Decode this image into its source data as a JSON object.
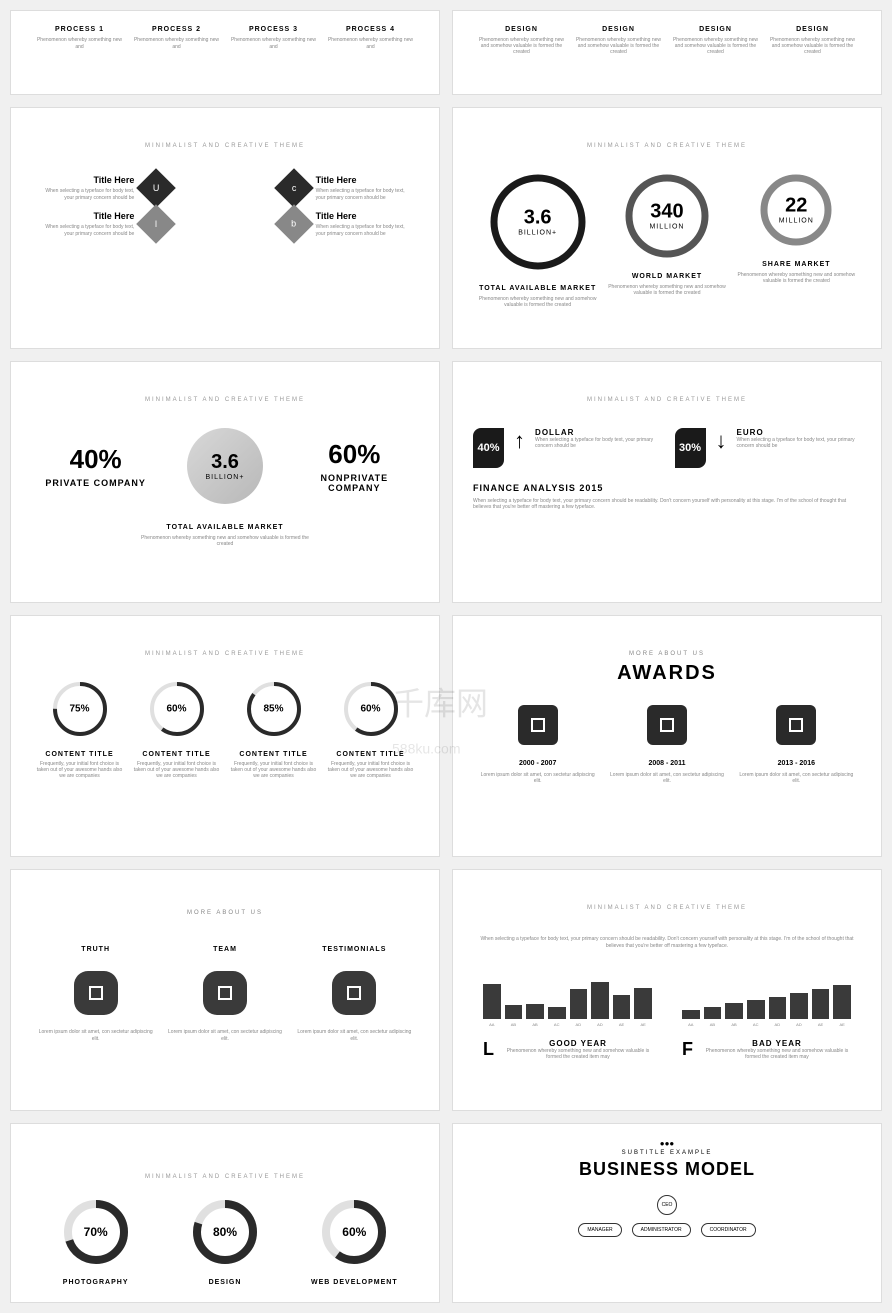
{
  "watermark": "千库网",
  "watermark_sub": "588ku.com",
  "tagline": "MINIMALIST AND CREATIVE THEME",
  "s1": {
    "items": [
      {
        "t": "PROCESS 1",
        "d": "Phenomenon whereby something new and"
      },
      {
        "t": "PROCESS 2",
        "d": "Phenomenon whereby something new and"
      },
      {
        "t": "PROCESS 3",
        "d": "Phenomenon whereby something new and"
      },
      {
        "t": "PROCESS 4",
        "d": "Phenomenon whereby something new and"
      }
    ]
  },
  "s2": {
    "items": [
      {
        "t": "DESIGN",
        "d": "Phenomenon whereby something new and somehow valuable is formed the created"
      },
      {
        "t": "DESIGN",
        "d": "Phenomenon whereby something new and somehow valuable is formed the created"
      },
      {
        "t": "DESIGN",
        "d": "Phenomenon whereby something new and somehow valuable is formed the created"
      },
      {
        "t": "DESIGN",
        "d": "Phenomenon whereby something new and somehow valuable is formed the created"
      }
    ]
  },
  "s3": {
    "t": "Title Here",
    "d": "When selecting a typeface for body text, your primary concern should be",
    "letters": [
      "U",
      "c",
      "l",
      "b"
    ]
  },
  "s4": {
    "circles": [
      {
        "n": "3.6",
        "u": "BILLION+",
        "t": "TOTAL AVAILABLE MARKET",
        "d": "Phenomenon whereby something new and somehow valuable is formed the created",
        "stroke": "#1a1a1a",
        "r": 48
      },
      {
        "n": "340",
        "u": "MILLION",
        "t": "WORLD MARKET",
        "d": "Phenomenon whereby something new and somehow valuable is formed the created",
        "stroke": "#555",
        "r": 42
      },
      {
        "n": "22",
        "u": "MILLION",
        "t": "SHARE MARKET",
        "d": "Phenomenon whereby something new and somehow valuable is formed the created",
        "stroke": "#888",
        "r": 36
      }
    ]
  },
  "s5": {
    "left": {
      "p": "40%",
      "l": "PRIVATE COMPANY"
    },
    "mid": {
      "n": "3.6",
      "u": "BILLION+"
    },
    "right": {
      "p": "60%",
      "l": "NONPRIVATE COMPANY"
    },
    "t": "TOTAL AVAILABLE MARKET",
    "d": "Phenomenon whereby something new and somehow valuable is formed the created"
  },
  "s6": {
    "items": [
      {
        "p": "40%",
        "arrow": "↑",
        "t": "DOLLAR",
        "d": "When selecting a typeface for body text, your primary concern should be"
      },
      {
        "p": "30%",
        "arrow": "↓",
        "t": "EURO",
        "d": "When selecting a typeface for body text, your primary concern should be"
      }
    ],
    "h": "FINANCE ANALYSIS 2015",
    "ht": "When selecting a typeface for body text, your primary concern should be readability. Don't concern yourself with personality at this stage. I'm of the school of thought that believes that you're better off mastering a few typeface."
  },
  "s7": {
    "rings": [
      {
        "p": 75,
        "t": "CONTENT TITLE",
        "d": "Frequently, your initial font choice is taken out of your awesome hands also we are companies"
      },
      {
        "p": 60,
        "t": "CONTENT TITLE",
        "d": "Frequently, your initial font choice is taken out of your awesome hands also we are companies"
      },
      {
        "p": 85,
        "t": "CONTENT TITLE",
        "d": "Frequently, your initial font choice is taken out of your awesome hands also we are companies"
      },
      {
        "p": 60,
        "t": "CONTENT TITLE",
        "d": "Frequently, your initial font choice is taken out of your awesome hands also we are companies"
      }
    ]
  },
  "s8": {
    "sub": "MORE ABOUT US",
    "h": "AWARDS",
    "items": [
      {
        "y": "2000 - 2007",
        "d": "Lorem ipsum dolor sit amet, con sectetur adipiscing elit."
      },
      {
        "y": "2008 - 2011",
        "d": "Lorem ipsum dolor sit amet, con sectetur adipiscing elit."
      },
      {
        "y": "2013 - 2016",
        "d": "Lorem ipsum dolor sit amet, con sectetur adipiscing elit."
      }
    ]
  },
  "s9": {
    "h": "MORE ABOUT US",
    "items": [
      {
        "t": "TRUTH",
        "d": "Lorem ipsum dolor sit amet, con sectetur adipiscing elit."
      },
      {
        "t": "TEAM",
        "d": "Lorem ipsum dolor sit amet, con sectetur adipiscing elit."
      },
      {
        "t": "TESTIMONIALS",
        "d": "Lorem ipsum dolor sit amet, con sectetur adipiscing elit."
      }
    ]
  },
  "s10": {
    "intro": "When selecting a typeface for body text, your primary concern should be readability. Don't concern yourself with personality at this stage. I'm of the school of thought that believes that you're better off mastering a few typeface.",
    "left": {
      "l": "L",
      "t": "GOOD YEAR",
      "d": "Phenomenon whereby something new and somehow valuable is formed the created item may",
      "bars": [
        70,
        28,
        30,
        25,
        60,
        75,
        48,
        62
      ],
      "labels": [
        "AA",
        "AB",
        "AB",
        "AC",
        "AD",
        "AD",
        "AE",
        "AE"
      ]
    },
    "right": {
      "l": "F",
      "t": "BAD YEAR",
      "d": "Phenomenon whereby something new and somehow valuable is formed the created item may",
      "bars": [
        18,
        25,
        32,
        38,
        45,
        52,
        60,
        68
      ],
      "labels": [
        "AA",
        "AB",
        "AB",
        "AC",
        "AD",
        "AD",
        "AE",
        "AE"
      ]
    }
  },
  "s11": {
    "rings": [
      {
        "p": 70,
        "t": "PHOTOGRAPHY"
      },
      {
        "p": 80,
        "t": "DESIGN"
      },
      {
        "p": 60,
        "t": "WEB DEVELOPMENT"
      }
    ]
  },
  "s12": {
    "dots": "●●●",
    "sub": "SUBTITLE EXAMPLE",
    "h": "BUSINESS MODEL",
    "ceo": "CEO",
    "row": [
      "MANAGER",
      "ADMINISTRATOR",
      "COORDINATOR"
    ]
  }
}
